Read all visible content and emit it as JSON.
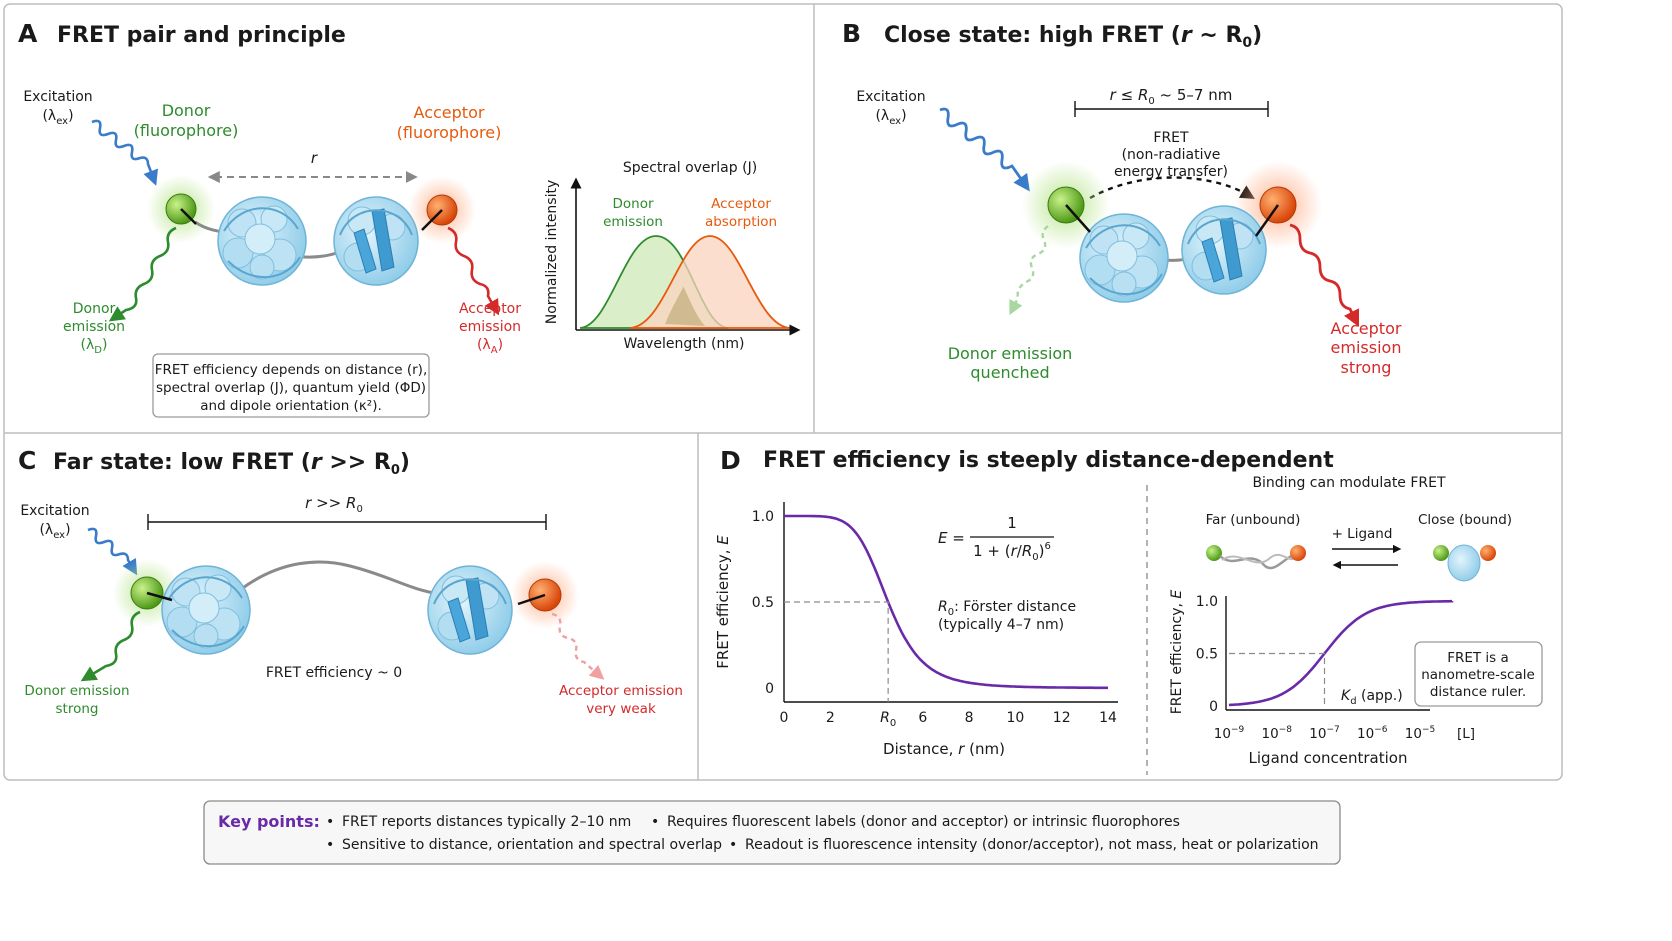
{
  "panelA": {
    "letter": "A",
    "title": "FRET pair and principle",
    "excitation": [
      "Excitation",
      "(λex)"
    ],
    "donor": [
      "Donor",
      "(fluorophore)"
    ],
    "acceptor": [
      "Acceptor",
      "(fluorophore)"
    ],
    "distance": "r",
    "donor_emission": [
      "Donor",
      "emission",
      "(λD)"
    ],
    "acceptor_emission": [
      "Acceptor",
      "emission",
      "(λA)"
    ],
    "note": [
      "FRET efficiency depends on distance (r),",
      "spectral overlap (J), quantum yield (ΦD)",
      "and dipole orientation (κ²)."
    ],
    "spectrum": {
      "title": "Spectral overlap (J)",
      "ylabel": "Normalized intensity",
      "xlabel": "Wavelength (nm)",
      "donor_label": [
        "Donor",
        "emission"
      ],
      "acceptor_label": [
        "Acceptor",
        "absorption"
      ]
    }
  },
  "panelB": {
    "letter": "B",
    "title": "Close state: high FRET (r ~ R0)",
    "excitation": [
      "Excitation",
      "(λex)"
    ],
    "distance": "r ≤ R0 ~ 5–7 nm",
    "fret": [
      "FRET",
      "(non-radiative",
      "energy transfer)"
    ],
    "donor_quenched": [
      "Donor emission",
      "quenched"
    ],
    "acceptor_strong": [
      "Acceptor",
      "emission",
      "strong"
    ]
  },
  "panelC": {
    "letter": "C",
    "title": "Far state: low FRET (r >> R0)",
    "excitation": [
      "Excitation",
      "(λex)"
    ],
    "distance": "r >> R0",
    "efficiency": "FRET efficiency ~ 0",
    "donor_strong": [
      "Donor emission",
      "strong"
    ],
    "acceptor_weak": [
      "Acceptor emission",
      "very weak"
    ]
  },
  "panelD": {
    "letter": "D",
    "title": "FRET efficiency is steeply distance-dependent",
    "formula_lhs": "E =",
    "formula_num": "1",
    "formula_den": "1 + (r/R0)6",
    "r0_note": [
      "R0: Förster distance",
      "(typically 4–7 nm)"
    ],
    "binding_title": "Binding can modulate FRET",
    "far_label": "Far (unbound)",
    "close_label": "Close (bound)",
    "ligand_label": "+ Ligand",
    "kd_label": "Kd (app.)",
    "ruler_note": [
      "FRET is a",
      "nanometre-scale",
      "distance ruler."
    ]
  },
  "chart_data": [
    {
      "type": "line",
      "title": "",
      "xlabel": "Distance, r (nm)",
      "ylabel": "FRET efficiency, E",
      "xlim": [
        0,
        14
      ],
      "ylim": [
        0,
        1
      ],
      "x_ticks": [
        "0",
        "2",
        "R0",
        "6",
        "8",
        "10",
        "12",
        "14"
      ],
      "y_ticks": [
        "0",
        "0.5",
        "1.0"
      ],
      "R0": 4.5,
      "series": [
        {
          "x": [
            0,
            1,
            2,
            3,
            4,
            4.5,
            5,
            6,
            7,
            8,
            10,
            12,
            14
          ],
          "values": [
            1.0,
            1.0,
            0.99,
            0.92,
            0.67,
            0.5,
            0.35,
            0.15,
            0.07,
            0.03,
            0.01,
            0.0,
            0.0
          ]
        }
      ],
      "color": "#6a2aa8"
    },
    {
      "type": "line",
      "title": "",
      "xlabel": "Ligand concentration",
      "ylabel": "FRET efficiency, E",
      "x_ticks": [
        "10−9",
        "10−8",
        "10−7",
        "10−6",
        "10−5",
        "[L]"
      ],
      "y_ticks": [
        "0",
        "0.5",
        "1.0"
      ],
      "Kd_log10": -7,
      "series": [
        {
          "x_log10": [
            -9,
            -8.5,
            -8,
            -7.5,
            -7,
            -6.5,
            -6,
            -5.5,
            -5
          ],
          "values": [
            0.0,
            0.04,
            0.1,
            0.25,
            0.5,
            0.8,
            0.97,
            1.0,
            1.0
          ]
        }
      ],
      "color": "#6a2aa8"
    }
  ],
  "keypoints": {
    "label": "Key points:",
    "items": [
      "FRET reports distances typically 2–10 nm",
      "Requires fluorescent labels (donor and acceptor) or intrinsic fluorophores",
      "Sensitive to distance, orientation and spectral overlap",
      "Readout is fluorescence intensity (donor/acceptor), not mass, heat or polarization"
    ]
  },
  "colors": {
    "donor": "#7cc43a",
    "acceptor": "#f06a1c",
    "protein": "#9fd3ee",
    "curve": "#6a2aa8"
  }
}
